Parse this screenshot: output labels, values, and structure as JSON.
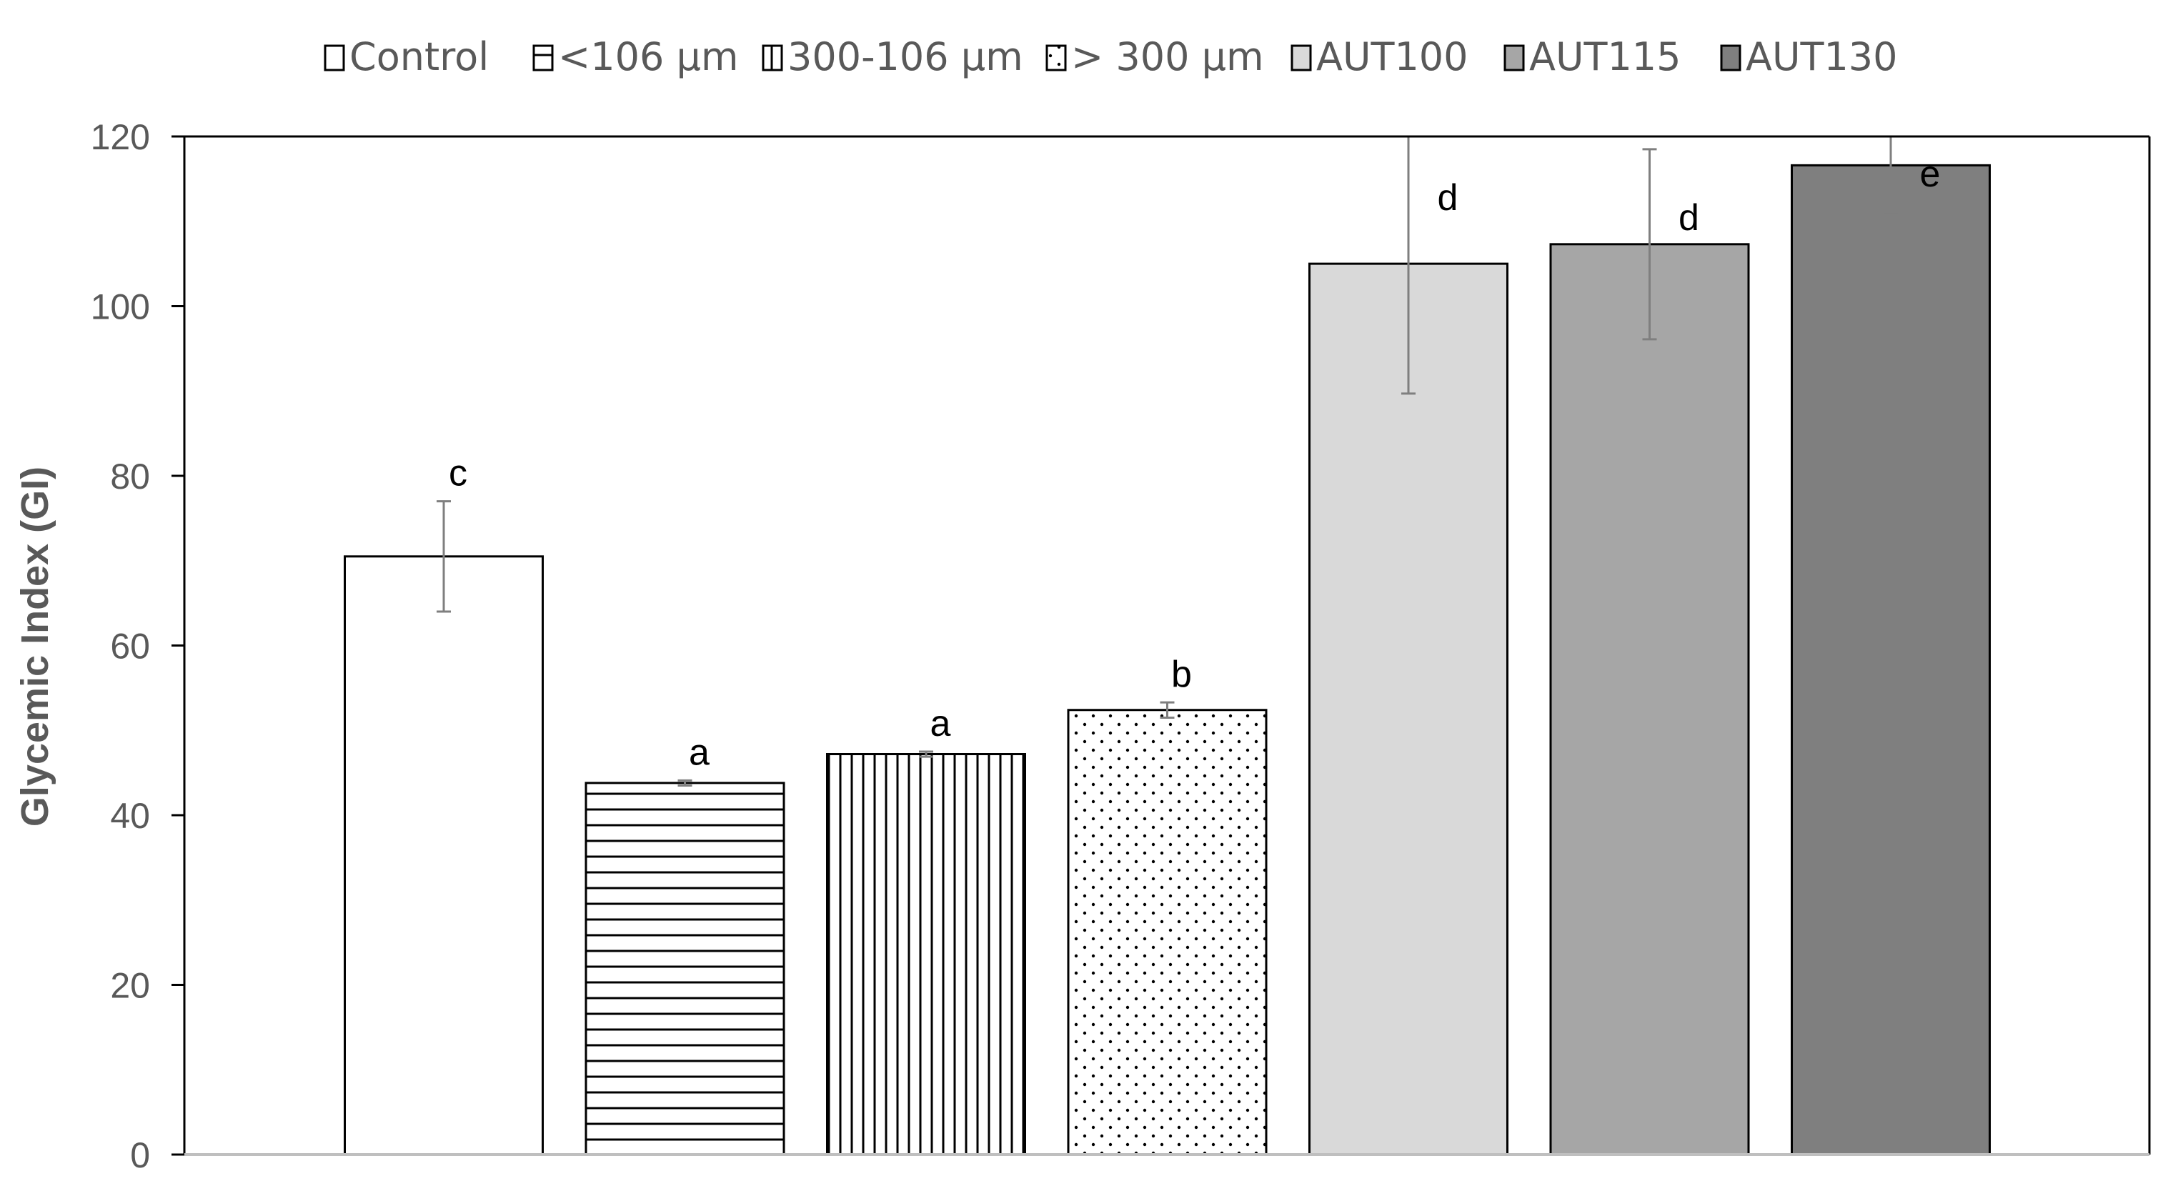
{
  "chart_data": {
    "type": "bar",
    "title": "",
    "xlabel": "",
    "ylabel": "Glycemic Index (GI)",
    "ylim": [
      0,
      120
    ],
    "yticks": [
      0,
      20,
      40,
      60,
      80,
      100,
      120
    ],
    "grid": false,
    "legend_position": "top",
    "series": [
      {
        "name": "Control",
        "value": 70.5,
        "error": 6.5,
        "label": "c",
        "fill": "#ffffff",
        "pattern": "none"
      },
      {
        "name": "<106 µm",
        "value": 43.8,
        "error": 0.3,
        "label": "a",
        "fill": "#ffffff",
        "pattern": "horizontal-lines"
      },
      {
        "name": "300-106 µm",
        "value": 47.2,
        "error": 0.3,
        "label": "a",
        "fill": "#ffffff",
        "pattern": "vertical-lines"
      },
      {
        "name": "> 300 µm",
        "value": 52.4,
        "error": 0.9,
        "label": "b",
        "fill": "#ffffff",
        "pattern": "dots"
      },
      {
        "name": "AUT100",
        "value": 105.0,
        "error": 15.3,
        "label": "d",
        "fill": "#d9d9d9",
        "pattern": "none"
      },
      {
        "name": "AUT115",
        "value": 107.3,
        "error": 11.2,
        "label": "d",
        "fill": "#a6a6a6",
        "pattern": "none"
      },
      {
        "name": "AUT130",
        "value": 116.6,
        "error": 5.5,
        "label": "e",
        "fill": "#7f7f7f",
        "pattern": "none"
      }
    ]
  },
  "colors": {
    "axis_text": "#595959",
    "bar_stroke": "#000000",
    "error_bar": "#7f7f7f"
  }
}
